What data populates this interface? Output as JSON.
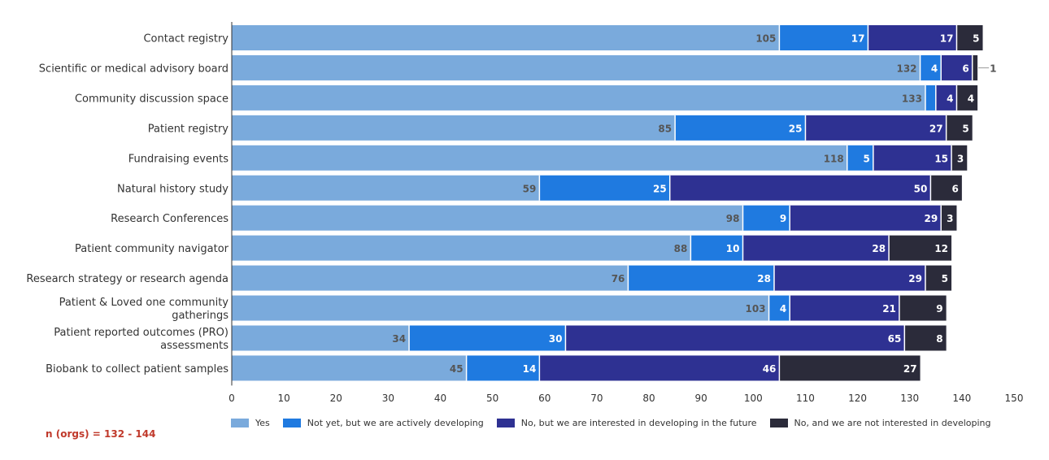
{
  "chart_data": {
    "type": "bar",
    "orientation": "horizontal",
    "stacked": true,
    "categories": [
      "Contact registry",
      "Scientific or medical advisory board",
      "Community discussion space",
      "Patient registry",
      "Fundraising events",
      "Natural history study",
      "Research Conferences",
      "Patient community navigator",
      "Research strategy or research agenda",
      "Patient & Loved one community gatherings",
      "Patient reported outcomes (PRO) assessments",
      "Biobank to collect patient samples"
    ],
    "series": [
      {
        "name": "Yes",
        "color": "#7aaadc",
        "values": [
          105,
          132,
          133,
          85,
          118,
          59,
          98,
          88,
          76,
          103,
          34,
          45
        ]
      },
      {
        "name": "Not yet, but we are actively developing",
        "color": "#1f7ae0",
        "values": [
          17,
          4,
          2,
          25,
          5,
          25,
          9,
          10,
          28,
          4,
          30,
          14
        ]
      },
      {
        "name": "No, but we are interested in developing in the future",
        "color": "#2e3192",
        "values": [
          17,
          6,
          4,
          27,
          15,
          50,
          29,
          28,
          29,
          21,
          65,
          46
        ]
      },
      {
        "name": "No, and we are not interested in developing",
        "color": "#2b2b3a",
        "values": [
          5,
          1,
          4,
          5,
          3,
          6,
          3,
          12,
          5,
          9,
          8,
          27
        ]
      }
    ],
    "xlim": [
      0,
      150
    ],
    "xticks": [
      0,
      10,
      20,
      30,
      40,
      50,
      60,
      70,
      80,
      90,
      100,
      110,
      120,
      130,
      140,
      150
    ],
    "legend_position": "bottom",
    "grid": false
  },
  "note": "n (orgs) = 132 - 144"
}
